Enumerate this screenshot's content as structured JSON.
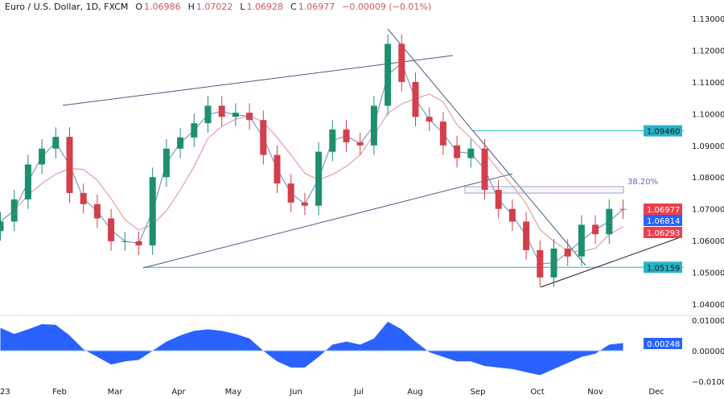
{
  "header": {
    "symbol": "Euro / U.S. Dollar, 1D, FXCM",
    "open_label": "O",
    "open": "1.06986",
    "high_label": "H",
    "high": "1.07022",
    "low_label": "L",
    "low": "1.06928",
    "close_label": "C",
    "close": "1.06977",
    "change": "−0.00009 (−0.01%)"
  },
  "colors": {
    "up": "#26a69a",
    "up_body": "#1e8f6e",
    "down": "#ef5350",
    "down_body": "#d33f4a",
    "ma_fast": "#7a9ac9",
    "ma_slow": "#e0a0a0",
    "oscillator": "#2962ff",
    "level": "#27b5c4",
    "trendline": "#4a5a80"
  },
  "chart_data": [
    {
      "type": "candlestick",
      "title": "Euro / U.S. Dollar, 1D, FXCM",
      "x": [
        "2023-01-02",
        "2023-01-09",
        "2023-01-16",
        "2023-01-23",
        "2023-01-30",
        "2023-02-06",
        "2023-02-13",
        "2023-02-20",
        "2023-02-27",
        "2023-03-06",
        "2023-03-13",
        "2023-03-20",
        "2023-03-27",
        "2023-04-03",
        "2023-04-10",
        "2023-04-17",
        "2023-04-24",
        "2023-05-01",
        "2023-05-08",
        "2023-05-15",
        "2023-05-22",
        "2023-05-29",
        "2023-06-05",
        "2023-06-12",
        "2023-06-19",
        "2023-06-26",
        "2023-07-03",
        "2023-07-10",
        "2023-07-17",
        "2023-07-24",
        "2023-07-31",
        "2023-08-07",
        "2023-08-14",
        "2023-08-21",
        "2023-08-28",
        "2023-09-04",
        "2023-09-11",
        "2023-09-18",
        "2023-09-25",
        "2023-10-02",
        "2023-10-09",
        "2023-10-16",
        "2023-10-23",
        "2023-10-30",
        "2023-11-06",
        "2023-11-13"
      ],
      "close": [
        1.066,
        1.073,
        1.084,
        1.089,
        1.0927,
        1.075,
        1.0715,
        1.067,
        1.0598,
        1.0598,
        1.0585,
        1.08,
        1.089,
        1.0925,
        1.097,
        1.1025,
        1.099,
        1.1003,
        1.098,
        1.087,
        1.078,
        1.072,
        1.071,
        1.088,
        1.095,
        1.091,
        1.09,
        1.1025,
        1.122,
        1.11,
        1.099,
        1.0975,
        1.09,
        1.086,
        1.089,
        1.076,
        1.07,
        1.066,
        1.057,
        1.0484,
        1.0575,
        1.055,
        1.065,
        1.062,
        1.07,
        1.0698
      ],
      "ylim": [
        1.035,
        1.135
      ],
      "yticks": [
        "1.13000",
        "1.12000",
        "1.11000",
        "1.10000",
        "1.09000",
        "1.08000",
        "1.07000",
        "1.06000",
        "1.05000",
        "1.04000"
      ],
      "xticks": [
        "23",
        "Feb",
        "Mar",
        "Apr",
        "May",
        "Jun",
        "Jul",
        "Aug",
        "Sep",
        "Oct",
        "Nov",
        "Dec"
      ],
      "price_labels": [
        {
          "value": "1.09460",
          "kind": "level"
        },
        {
          "value": "1.06977",
          "kind": "close"
        },
        {
          "value": "1.06814",
          "kind": "ma_fast"
        },
        {
          "value": "1.06293",
          "kind": "ma_slow"
        },
        {
          "value": "1.05159",
          "kind": "level"
        }
      ],
      "annotations": {
        "fib_label": "38.20%"
      },
      "grid": false
    },
    {
      "type": "area",
      "values": [
        0.0075,
        0.0055,
        0.007,
        0.0087,
        0.0085,
        0.005,
        0.0005,
        -0.002,
        -0.0045,
        -0.0035,
        -0.003,
        0.0,
        0.003,
        0.005,
        0.0065,
        0.007,
        0.0065,
        0.0055,
        0.004,
        0.0,
        -0.0035,
        -0.0055,
        -0.0055,
        -0.002,
        0.002,
        0.003,
        0.002,
        0.004,
        0.0095,
        0.007,
        0.003,
        -0.0005,
        -0.002,
        -0.0035,
        -0.0035,
        -0.005,
        -0.0055,
        -0.006,
        -0.007,
        -0.008,
        -0.006,
        -0.004,
        -0.002,
        -0.001,
        0.002,
        0.0025
      ],
      "ylim": [
        -0.012,
        0.012
      ],
      "yticks": [
        "0.01000",
        "0.00000",
        "−0.01000"
      ],
      "last_value": "0.00248"
    }
  ]
}
